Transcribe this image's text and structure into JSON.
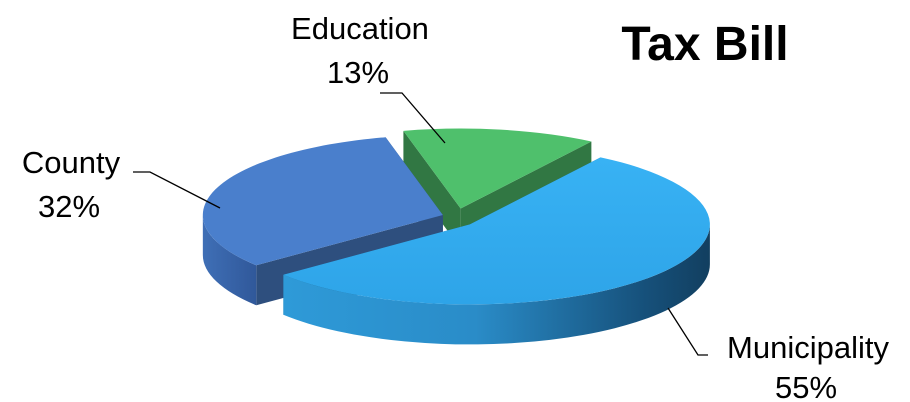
{
  "chart_data": {
    "type": "pie",
    "title": "Tax Bill",
    "categories": [
      "Municipality",
      "County",
      "Education"
    ],
    "values": [
      55,
      32,
      13
    ],
    "value_suffix": "%",
    "style": "3d-exploded",
    "legend": "none",
    "colors": {
      "Municipality": "#32aaee",
      "County": "#4a7fcc",
      "Education": "#4fc06c"
    }
  }
}
